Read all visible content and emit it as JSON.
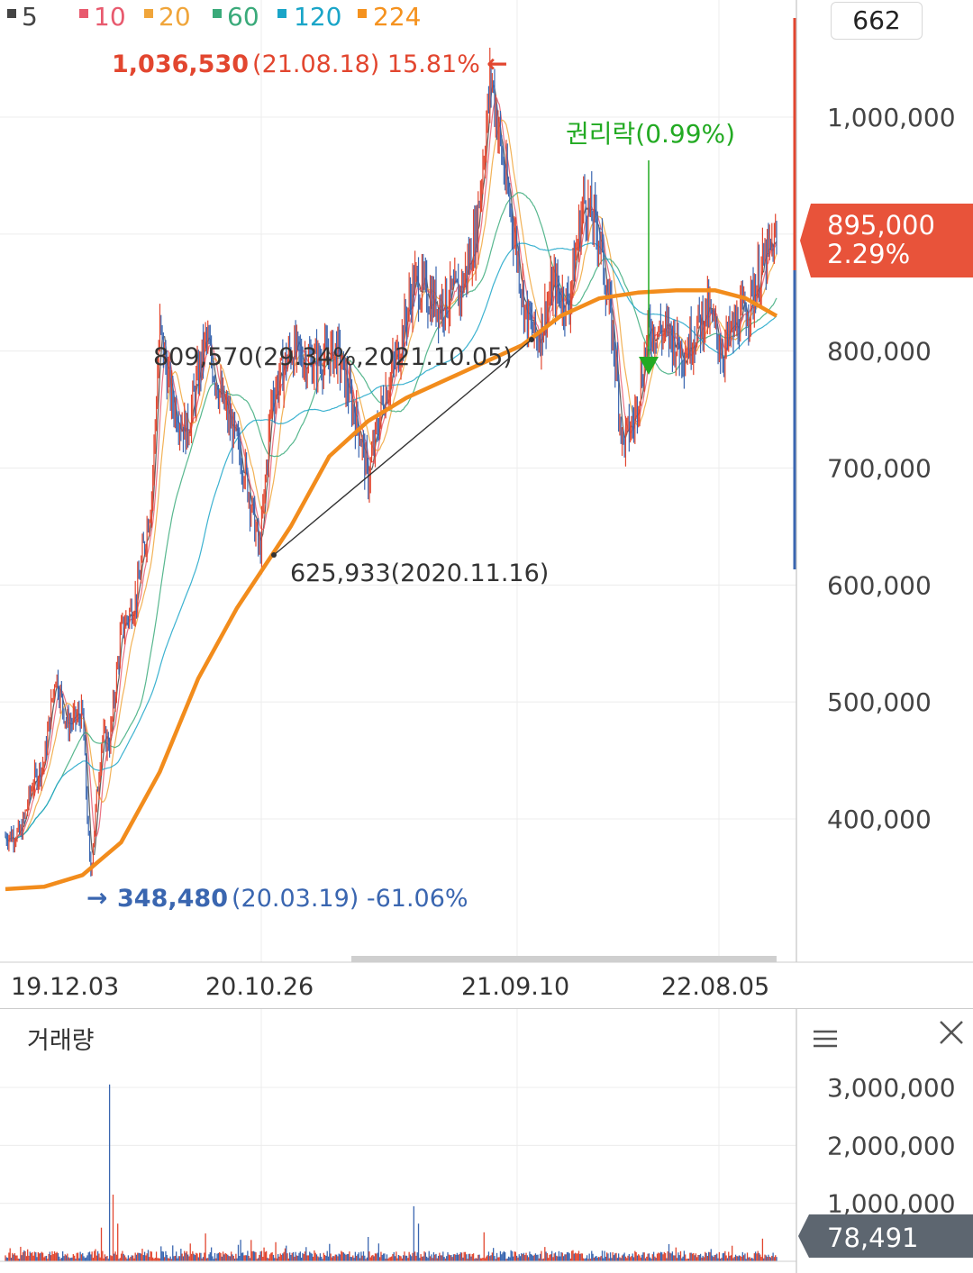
{
  "legend": [
    {
      "label": "5",
      "color": "#444444"
    },
    {
      "label": "10",
      "color": "#e85a6e"
    },
    {
      "label": "20",
      "color": "#f0a53a"
    },
    {
      "label": "60",
      "color": "#3aaa7a"
    },
    {
      "label": "120",
      "color": "#1aa5c8"
    },
    {
      "label": "224",
      "color": "#f5921e"
    }
  ],
  "page_indicator": "662",
  "annotations": {
    "high_price": "1,036,530",
    "high_rest": "(21.08.18) 15.81%",
    "high_arrow": "←",
    "low_arrow": "→",
    "low_price": "348,480",
    "low_rest": "(20.03.19) -61.06%",
    "trend_high": "809,570(29.34%,2021.10.05)",
    "trend_low": "625,933(2020.11.16)",
    "ex_rights": "권리락(0.99%)"
  },
  "current_price": {
    "price": "895,000",
    "change": "2.29%"
  },
  "volume_panel": {
    "title": "거래량",
    "current_volume": "78,491"
  },
  "colors": {
    "up": "#e2462f",
    "down": "#3a66b0",
    "ma224": "#f28c1c",
    "ex_rights": "#22aa22",
    "current_badge_bg": "#e8533a",
    "volume_badge_bg": "#5d6670"
  },
  "chart_data": {
    "type": "candlestick",
    "x_tick_labels": [
      "19.12.03",
      "20.10.26",
      "21.09.10",
      "22.08.05"
    ],
    "price_axis": {
      "ticks": [
        400000,
        500000,
        600000,
        700000,
        800000,
        900000,
        1000000
      ],
      "labels": [
        "400,000",
        "500,000",
        "600,000",
        "700,000",
        "800,000",
        "",
        "1,000,000"
      ],
      "ylim": [
        320000,
        1090000
      ]
    },
    "price_path": [
      {
        "t": 0.0,
        "v": 385000
      },
      {
        "t": 0.02,
        "v": 388000
      },
      {
        "t": 0.035,
        "v": 430000
      },
      {
        "t": 0.05,
        "v": 448000
      },
      {
        "t": 0.065,
        "v": 525000
      },
      {
        "t": 0.08,
        "v": 480000
      },
      {
        "t": 0.1,
        "v": 490000
      },
      {
        "t": 0.11,
        "v": 350000
      },
      {
        "t": 0.125,
        "v": 470000
      },
      {
        "t": 0.135,
        "v": 465000
      },
      {
        "t": 0.15,
        "v": 560000
      },
      {
        "t": 0.17,
        "v": 590000
      },
      {
        "t": 0.19,
        "v": 680000
      },
      {
        "t": 0.2,
        "v": 820000
      },
      {
        "t": 0.215,
        "v": 760000
      },
      {
        "t": 0.235,
        "v": 730000
      },
      {
        "t": 0.26,
        "v": 810000
      },
      {
        "t": 0.28,
        "v": 760000
      },
      {
        "t": 0.31,
        "v": 700000
      },
      {
        "t": 0.33,
        "v": 626000
      },
      {
        "t": 0.345,
        "v": 760000
      },
      {
        "t": 0.37,
        "v": 800000
      },
      {
        "t": 0.4,
        "v": 790000
      },
      {
        "t": 0.43,
        "v": 800000
      },
      {
        "t": 0.46,
        "v": 730000
      },
      {
        "t": 0.47,
        "v": 690000
      },
      {
        "t": 0.49,
        "v": 760000
      },
      {
        "t": 0.51,
        "v": 800000
      },
      {
        "t": 0.53,
        "v": 860000
      },
      {
        "t": 0.56,
        "v": 840000
      },
      {
        "t": 0.59,
        "v": 850000
      },
      {
        "t": 0.61,
        "v": 900000
      },
      {
        "t": 0.63,
        "v": 1036530
      },
      {
        "t": 0.645,
        "v": 960000
      },
      {
        "t": 0.66,
        "v": 900000
      },
      {
        "t": 0.675,
        "v": 830000
      },
      {
        "t": 0.69,
        "v": 809570
      },
      {
        "t": 0.71,
        "v": 855000
      },
      {
        "t": 0.73,
        "v": 840000
      },
      {
        "t": 0.75,
        "v": 930000
      },
      {
        "t": 0.77,
        "v": 900000
      },
      {
        "t": 0.79,
        "v": 800000
      },
      {
        "t": 0.8,
        "v": 720000
      },
      {
        "t": 0.815,
        "v": 740000
      },
      {
        "t": 0.835,
        "v": 820000
      },
      {
        "t": 0.86,
        "v": 815000
      },
      {
        "t": 0.88,
        "v": 800000
      },
      {
        "t": 0.91,
        "v": 835000
      },
      {
        "t": 0.93,
        "v": 800000
      },
      {
        "t": 0.95,
        "v": 825000
      },
      {
        "t": 0.965,
        "v": 840000
      },
      {
        "t": 0.98,
        "v": 870000
      },
      {
        "t": 1.0,
        "v": 895000
      }
    ],
    "ma224_path": [
      {
        "t": 0.0,
        "v": 340000
      },
      {
        "t": 0.05,
        "v": 342000
      },
      {
        "t": 0.1,
        "v": 352000
      },
      {
        "t": 0.15,
        "v": 380000
      },
      {
        "t": 0.2,
        "v": 440000
      },
      {
        "t": 0.25,
        "v": 520000
      },
      {
        "t": 0.3,
        "v": 580000
      },
      {
        "t": 0.33,
        "v": 610000
      },
      {
        "t": 0.37,
        "v": 650000
      },
      {
        "t": 0.42,
        "v": 710000
      },
      {
        "t": 0.47,
        "v": 740000
      },
      {
        "t": 0.52,
        "v": 760000
      },
      {
        "t": 0.57,
        "v": 775000
      },
      {
        "t": 0.62,
        "v": 790000
      },
      {
        "t": 0.67,
        "v": 805000
      },
      {
        "t": 0.72,
        "v": 830000
      },
      {
        "t": 0.77,
        "v": 845000
      },
      {
        "t": 0.82,
        "v": 850000
      },
      {
        "t": 0.87,
        "v": 852000
      },
      {
        "t": 0.92,
        "v": 852000
      },
      {
        "t": 0.96,
        "v": 845000
      },
      {
        "t": 1.0,
        "v": 830000
      }
    ],
    "volume_axis": {
      "ticks": [
        1000000,
        2000000,
        3000000
      ],
      "labels": [
        "1,000,000",
        "2,000,000",
        "3,000,000"
      ],
      "ylim": [
        0,
        3300000
      ]
    },
    "volume_spikes": [
      {
        "t": 0.135,
        "v": 3050000
      },
      {
        "t": 0.14,
        "v": 1150000
      },
      {
        "t": 0.145,
        "v": 650000
      },
      {
        "t": 0.125,
        "v": 580000
      },
      {
        "t": 0.26,
        "v": 480000
      },
      {
        "t": 0.47,
        "v": 420000
      },
      {
        "t": 0.53,
        "v": 950000
      },
      {
        "t": 0.535,
        "v": 650000
      },
      {
        "t": 0.62,
        "v": 500000
      },
      {
        "t": 0.42,
        "v": 300000
      },
      {
        "t": 0.35,
        "v": 330000
      },
      {
        "t": 0.02,
        "v": 250000
      }
    ]
  }
}
